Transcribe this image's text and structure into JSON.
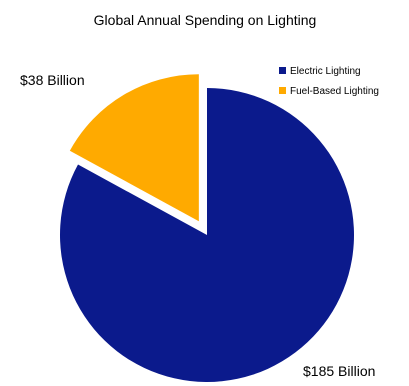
{
  "chart_data": {
    "type": "pie",
    "title": "Global Annual Spending on Lighting",
    "legend_position": "top-right",
    "exploded_slice": "Fuel-Based Lighting",
    "slices": [
      {
        "name": "Electric Lighting",
        "value": 185,
        "label": "$185 Billion",
        "color": "#0b1a8c"
      },
      {
        "name": "Fuel-Based Lighting",
        "value": 38,
        "label": "$38 Billion",
        "color": "#ffaa00"
      }
    ]
  }
}
